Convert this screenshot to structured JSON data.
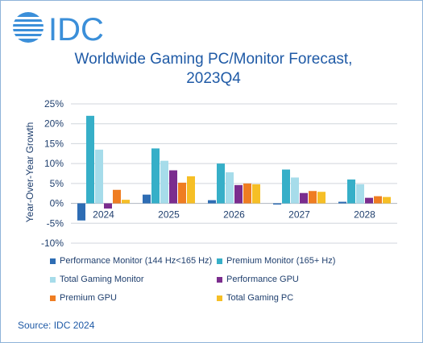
{
  "logo": {
    "text": "IDC"
  },
  "chart_data": {
    "type": "bar",
    "title": "Worldwide Gaming PC/Monitor Forecast, 2023Q4",
    "title_lines": [
      "Worldwide Gaming PC/Monitor Forecast,",
      "2023Q4"
    ],
    "ylabel": "Year-Over-Year Growth",
    "xlabel": "",
    "ylim": [
      -10,
      25
    ],
    "yticks": [
      -10,
      -5,
      0,
      5,
      10,
      15,
      20,
      25
    ],
    "ytick_labels": [
      "-10%",
      "-5%",
      "0%",
      "5%",
      "10%",
      "15%",
      "20%",
      "25%"
    ],
    "grid": true,
    "legend_position": "bottom",
    "categories": [
      "2024",
      "2025",
      "2026",
      "2027",
      "2028"
    ],
    "series": [
      {
        "name": "Performance Monitor (144 Hz<165 Hz)",
        "color": "#2e6db4",
        "values": [
          -4.3,
          2.2,
          0.8,
          -0.3,
          0.4
        ]
      },
      {
        "name": "Premium Monitor (165+ Hz)",
        "color": "#36afc8",
        "values": [
          22.0,
          13.8,
          10.0,
          8.5,
          6.0
        ]
      },
      {
        "name": "Total Gaming Monitor",
        "color": "#a6dcea",
        "values": [
          13.5,
          10.7,
          7.8,
          6.5,
          4.8
        ]
      },
      {
        "name": "Performance GPU",
        "color": "#7b2d8e",
        "values": [
          -1.3,
          8.3,
          4.6,
          2.6,
          1.4
        ]
      },
      {
        "name": "Premium GPU",
        "color": "#ef7d22",
        "values": [
          3.4,
          5.2,
          5.0,
          3.1,
          1.8
        ]
      },
      {
        "name": "Total Gaming PC",
        "color": "#f6bf26",
        "values": [
          0.9,
          6.8,
          4.8,
          2.9,
          1.6
        ]
      }
    ]
  },
  "source": "Source: IDC 2024",
  "colors": {
    "title": "#1f5aa6",
    "grid": "#d0d5dc",
    "axis_text": "#1f3f6e",
    "frame": "#8fb3d9"
  }
}
